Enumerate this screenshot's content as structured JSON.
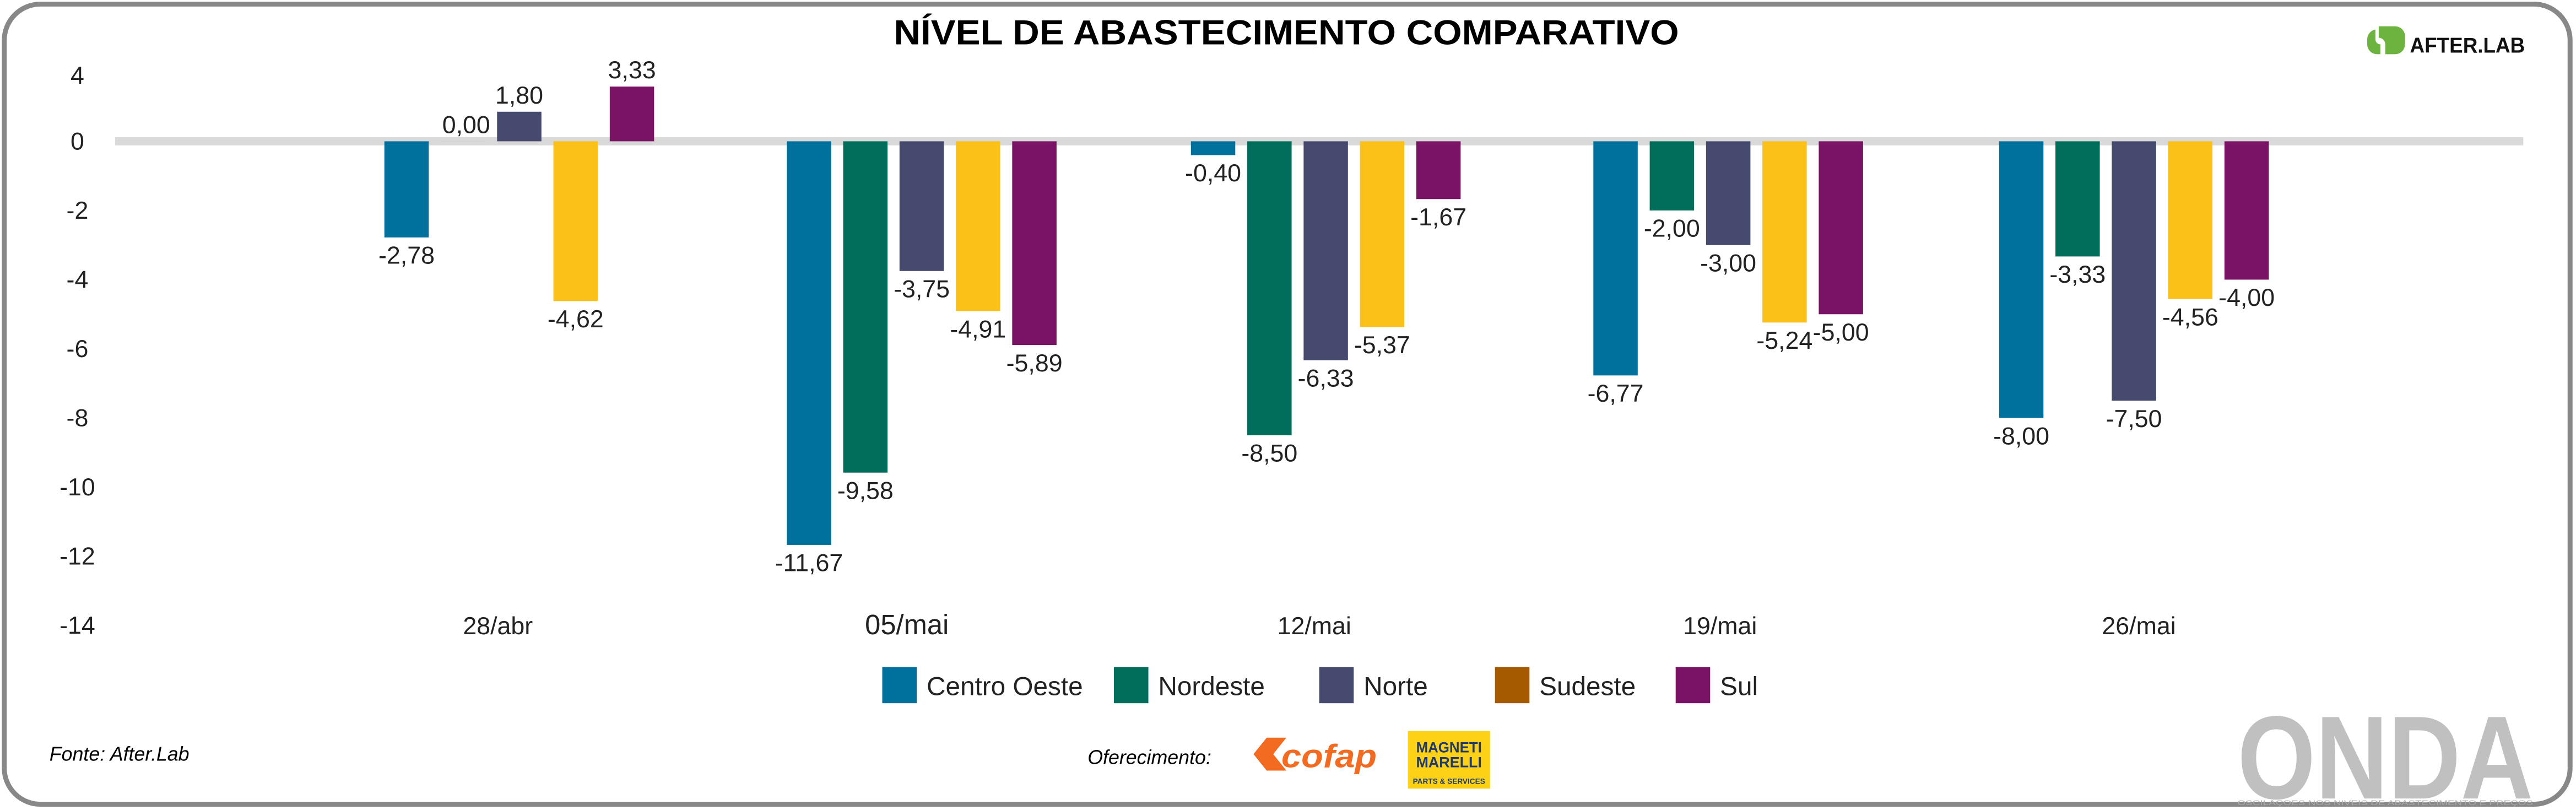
{
  "chart_data": {
    "type": "bar",
    "title": "NÍVEL DE ABASTECIMENTO COMPARATIVO",
    "categories": [
      "28/abr",
      "05/mai",
      "12/mai",
      "19/mai",
      "26/mai"
    ],
    "series": [
      {
        "name": "Centro Oeste",
        "color": "#00719c",
        "legend_color": "#00719c",
        "values": [
          -2.78,
          -11.67,
          -0.4,
          -6.77,
          -8.0
        ]
      },
      {
        "name": "Nordeste",
        "color": "#006e5a",
        "legend_color": "#006e5a",
        "values": [
          0.0,
          -9.58,
          -8.5,
          -2.0,
          -3.33
        ]
      },
      {
        "name": "Norte",
        "color": "#464a6e",
        "legend_color": "#464a6e",
        "values": [
          1.8,
          -3.75,
          -6.33,
          -3.0,
          -7.5
        ]
      },
      {
        "name": "Sudeste",
        "color": "#fcc119",
        "legend_color": "#a65a00",
        "values": [
          -4.62,
          -4.91,
          -5.37,
          -5.24,
          -4.56
        ]
      },
      {
        "name": "Sul",
        "color": "#7a1265",
        "legend_color": "#7a1265",
        "values": [
          3.33,
          -5.89,
          -1.67,
          -5.0,
          -4.0
        ]
      }
    ],
    "yticks": [
      4,
      0,
      -2,
      -4,
      -6,
      -8,
      -10,
      -12,
      -14
    ],
    "ylim": [
      -14,
      4
    ],
    "grid": false,
    "zero_line": true,
    "data_labels": true,
    "decimal_separator": ",",
    "legend_position": "bottom"
  },
  "source": "Fonte: After.Lab",
  "sponsor_label": "Oferecimento:",
  "logos": {
    "afterlab": "AFTER.LAB",
    "cofap": "cofap",
    "magneti_marelli": [
      "MAGNETI",
      "MARELLI",
      "PARTS & SERVICES"
    ],
    "onda": "ONDA",
    "onda_tagline": "OSCILAÇOES NOS NIVEIS DE ABASTECIMENTO E PREÇOS"
  }
}
